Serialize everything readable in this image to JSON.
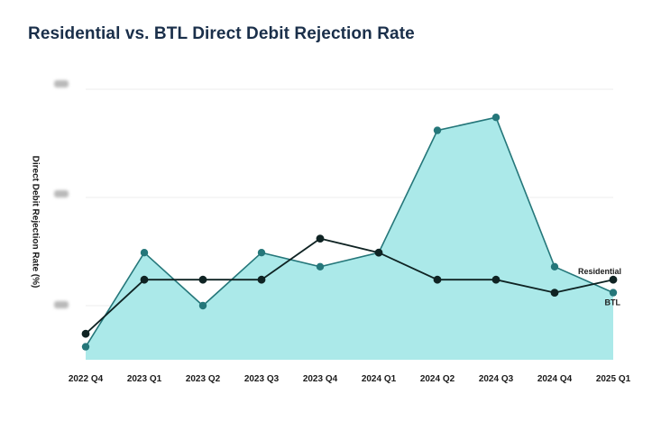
{
  "colors": {
    "title": "#1a2f4a",
    "btl_fill": "#abe9e9",
    "btl_line": "#25777a",
    "residential_line": "#0f2323",
    "grid": "#ececec"
  },
  "chart_data": {
    "type": "line",
    "title": "Residential vs. BTL Direct Debit Rejection Rate",
    "xlabel": "",
    "ylabel": "Direct Debit  Rejection Rate (%)",
    "ytick_labels": [
      "",
      "",
      ""
    ],
    "ytick_values": [
      1,
      2,
      3
    ],
    "ylim": [
      0.5,
      3.05
    ],
    "grid": true,
    "categories": [
      "2022 Q4",
      "2023 Q1",
      "2023 Q2",
      "2023 Q3",
      "2023 Q4",
      "2024 Q1",
      "2024 Q2",
      "2024 Q3",
      "2024 Q4",
      "2025 Q1"
    ],
    "series": [
      {
        "name": "BTL",
        "style": "area",
        "values": [
          0.62,
          1.49,
          1.0,
          1.49,
          1.36,
          1.49,
          2.62,
          2.74,
          1.36,
          1.12
        ]
      },
      {
        "name": "Residential",
        "style": "line",
        "values": [
          0.74,
          1.24,
          1.24,
          1.24,
          1.62,
          1.49,
          1.24,
          1.24,
          1.12,
          1.24
        ]
      }
    ],
    "end_labels": [
      "Residential",
      "BTL"
    ]
  }
}
